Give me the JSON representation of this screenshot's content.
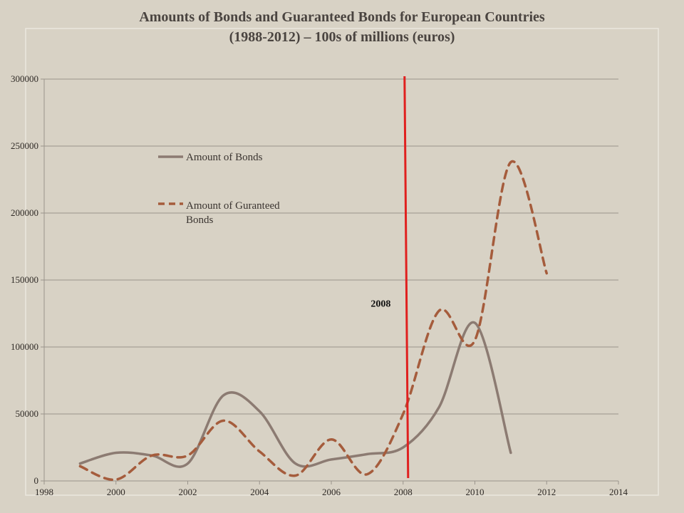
{
  "chart_data": {
    "type": "line",
    "title_line1": "Amounts of Bonds and Guaranteed Bonds for European Countries",
    "title_line2": "(1988-2012) – 100s of millions (euros)",
    "xlabel": "",
    "ylabel": "",
    "xlim": [
      1998,
      2014
    ],
    "ylim": [
      0,
      300000
    ],
    "x_ticks": [
      1998,
      2000,
      2002,
      2004,
      2006,
      2008,
      2010,
      2012,
      2014
    ],
    "y_ticks": [
      0,
      50000,
      100000,
      150000,
      200000,
      250000,
      300000
    ],
    "grid": "horizontal",
    "legend_position": "upper-left-inside",
    "series": [
      {
        "name": "Amount of Bonds",
        "style": "solid",
        "color": "#8c7b72",
        "x": [
          1999,
          2000,
          2001,
          2002,
          2003,
          2004,
          2005,
          2006,
          2007,
          2008,
          2009,
          2010,
          2011
        ],
        "values": [
          13000,
          21000,
          19000,
          13000,
          64000,
          52000,
          13000,
          16000,
          20000,
          25000,
          55000,
          118000,
          21000
        ]
      },
      {
        "name": "Amount of Guranteed Bonds",
        "style": "dashed",
        "color": "#a55c3c",
        "x": [
          1999,
          2000,
          2001,
          2002,
          2003,
          2004,
          2005,
          2006,
          2007,
          2008,
          2009,
          2010,
          2011,
          2012
        ],
        "values": [
          11000,
          1000,
          19000,
          19000,
          45000,
          22000,
          4000,
          31000,
          5000,
          50000,
          127000,
          105000,
          238000,
          155000
        ]
      }
    ],
    "annotations": [
      {
        "type": "vertical-line",
        "x": 2008.1,
        "color": "#e0201f"
      },
      {
        "type": "text",
        "text": "2008",
        "x": 2007.1,
        "y": 130000
      }
    ]
  }
}
